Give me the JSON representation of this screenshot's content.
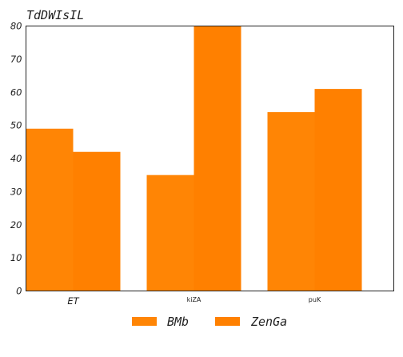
{
  "chart_data": {
    "type": "bar",
    "title": "TdDWIsIL",
    "xlabel": "",
    "ylabel": "",
    "categories": [
      "ET",
      "kiZA",
      "puK"
    ],
    "series": [
      {
        "name": "BMb",
        "values": [
          49,
          35,
          54
        ],
        "color": "#ff8000"
      },
      {
        "name": "ZenGa",
        "values": [
          42,
          80,
          61
        ],
        "color": "#ff8000"
      }
    ],
    "ylim": [
      0,
      80
    ],
    "yticks": [
      0,
      10,
      20,
      30,
      40,
      50,
      60,
      70,
      80
    ],
    "grid": false,
    "legend_position": "bottom-center"
  }
}
